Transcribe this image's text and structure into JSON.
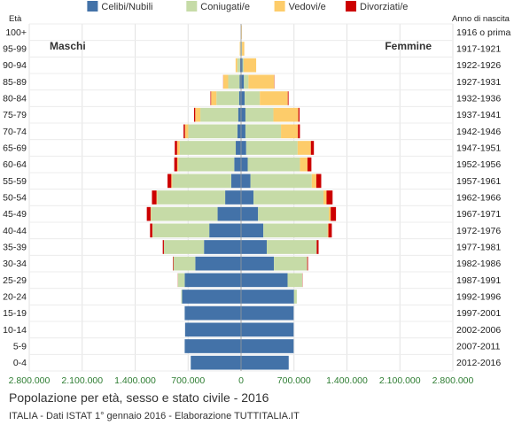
{
  "chart_data": {
    "type": "bar",
    "title": "Popolazione per età, sesso e stato civile - 2016",
    "subtitle": "ITALIA - Dati ISTAT 1° gennaio 2016 - Elaborazione TUTTITALIA.IT",
    "left_header": "Età",
    "right_header": "Anno di nascita",
    "left_side_label": "Maschi",
    "right_side_label": "Femmine",
    "legend_position": "top",
    "grid": true,
    "xlim": [
      -2800000,
      2800000
    ],
    "x_ticks": [
      -2800000,
      -2100000,
      -1400000,
      -700000,
      0,
      700000,
      1400000,
      2100000,
      2800000
    ],
    "x_tick_labels": [
      "2.800.000",
      "2.100.000",
      "1.400.000",
      "700.000",
      "0",
      "700.000",
      "1.400.000",
      "2.100.000",
      "2.800.000"
    ],
    "age_groups": [
      "100+",
      "95-99",
      "90-94",
      "85-89",
      "80-84",
      "75-79",
      "70-74",
      "65-69",
      "60-64",
      "55-59",
      "50-54",
      "45-49",
      "40-44",
      "35-39",
      "30-34",
      "25-29",
      "20-24",
      "15-19",
      "10-14",
      "5-9",
      "0-4"
    ],
    "birth_years": [
      "1916 o prima",
      "1917-1921",
      "1922-1926",
      "1927-1931",
      "1932-1936",
      "1937-1941",
      "1942-1946",
      "1947-1951",
      "1952-1956",
      "1957-1961",
      "1962-1966",
      "1967-1971",
      "1972-1976",
      "1977-1981",
      "1982-1986",
      "1987-1991",
      "1992-1996",
      "1997-2001",
      "2002-2006",
      "2007-2011",
      "2012-2016"
    ],
    "series": [
      {
        "name": "Celibi/Nubili",
        "color": "#4372a8",
        "males": [
          1000,
          5000,
          14000,
          20000,
          26000,
          38000,
          48000,
          70000,
          90000,
          130000,
          210000,
          310000,
          420000,
          490000,
          605000,
          745000,
          780000,
          745000,
          740000,
          745000,
          665000
        ],
        "females": [
          2000,
          8000,
          20000,
          38000,
          48000,
          58000,
          58000,
          68000,
          88000,
          125000,
          165000,
          225000,
          295000,
          340000,
          435000,
          615000,
          700000,
          695000,
          695000,
          695000,
          630000
        ]
      },
      {
        "name": "Coniugati/e",
        "color": "#c6dba7",
        "males": [
          0,
          4000,
          36000,
          150000,
          300000,
          500000,
          650000,
          740000,
          740000,
          780000,
          900000,
          880000,
          750000,
          530000,
          290000,
          90000,
          10000,
          0,
          0,
          0,
          0
        ],
        "females": [
          0,
          5000,
          15000,
          60000,
          200000,
          370000,
          470000,
          680000,
          690000,
          810000,
          925000,
          935000,
          850000,
          660000,
          440000,
          195000,
          37000,
          0,
          0,
          0,
          0
        ]
      },
      {
        "name": "Vedovi/e",
        "color": "#fdcc6a",
        "males": [
          1000,
          8000,
          22000,
          64000,
          70000,
          68000,
          44000,
          36000,
          15000,
          12000,
          8000,
          6000,
          3000,
          0,
          0,
          0,
          0,
          0,
          0,
          0,
          0
        ],
        "females": [
          8000,
          30000,
          165000,
          340000,
          370000,
          330000,
          225000,
          175000,
          100000,
          60000,
          40000,
          25000,
          10000,
          0,
          0,
          0,
          0,
          0,
          0,
          0,
          0
        ]
      },
      {
        "name": "Divorziati/e",
        "color": "#cc0000",
        "males": [
          0,
          0,
          0,
          2000,
          8000,
          15000,
          18000,
          30000,
          38000,
          50000,
          60000,
          50000,
          30000,
          15000,
          7000,
          2000,
          0,
          0,
          0,
          0,
          0
        ],
        "females": [
          0,
          0,
          0,
          3000,
          10000,
          15000,
          25000,
          40000,
          52000,
          65000,
          80000,
          70000,
          45000,
          25000,
          10000,
          3000,
          0,
          0,
          0,
          0,
          0
        ]
      }
    ]
  }
}
